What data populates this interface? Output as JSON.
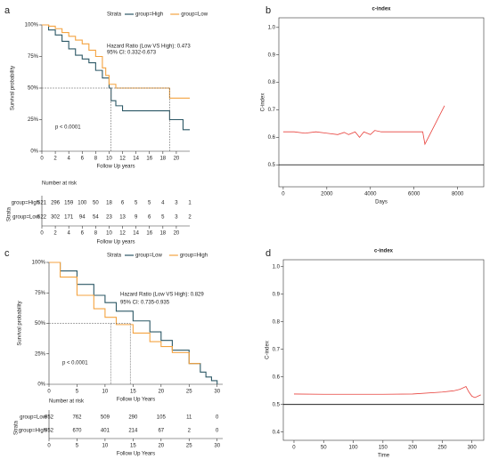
{
  "chart_data": [
    {
      "type": "km",
      "panel": "a",
      "ylabel": "Survival probability",
      "xlabel": "Follow Up years",
      "legend_title": "Strata",
      "xlim": [
        0,
        22
      ],
      "ylim": [
        0,
        100
      ],
      "xticks": [
        0,
        2,
        4,
        6,
        8,
        10,
        12,
        14,
        16,
        18,
        20
      ],
      "yticks": [
        {
          "value": 0,
          "label": "0%"
        },
        {
          "value": 25,
          "label": "25%"
        },
        {
          "value": 50,
          "label": "50%"
        },
        {
          "value": 75,
          "label": "75%"
        },
        {
          "value": 100,
          "label": "100%"
        }
      ],
      "series": [
        {
          "name": "group=High",
          "color": "#2c5866",
          "x": [
            0,
            1,
            2,
            3,
            4,
            5,
            6,
            7,
            8,
            9,
            10,
            10.3,
            11,
            12,
            15,
            19,
            21,
            22
          ],
          "values": [
            100,
            96,
            92,
            87,
            81,
            76,
            73,
            70,
            64,
            58,
            50,
            40,
            36,
            32,
            32,
            25,
            17,
            17
          ]
        },
        {
          "name": "group=Low",
          "color": "#f4a340",
          "x": [
            0,
            1,
            2,
            3,
            4,
            5,
            6,
            7,
            8,
            9,
            9.5,
            10,
            11,
            15,
            19,
            22
          ],
          "values": [
            100,
            99,
            97,
            94,
            91,
            88,
            85,
            80,
            75,
            66,
            60,
            53,
            50,
            50,
            42,
            42
          ]
        }
      ],
      "median_lines": {
        "y": 50,
        "x": [
          10.3,
          19
        ]
      },
      "annotations": [
        "Hazard Ratio (Low VS High): 0.473",
        "95% CI: 0.332-0.673",
        "p < 0.0001"
      ],
      "risk_table": {
        "title": "Number at risk",
        "ylabel": "Strata",
        "xlabel": "Follow Up years",
        "times": [
          0,
          2,
          4,
          6,
          8,
          10,
          12,
          14,
          16,
          18,
          20,
          22
        ],
        "rows": [
          {
            "name": "group=High",
            "color": "#2c5866",
            "values": [
              521,
              296,
              159,
              100,
              50,
              18,
              6,
              5,
              5,
              4,
              3,
              1
            ]
          },
          {
            "name": "group=Low",
            "color": "#f4a340",
            "values": [
              522,
              302,
              171,
              94,
              54,
              23,
              13,
              9,
              6,
              5,
              3,
              2
            ]
          }
        ]
      }
    },
    {
      "type": "line",
      "panel": "b",
      "title": "c-index",
      "ylabel": "C-index",
      "xlabel": "Days",
      "xlim": [
        -200,
        9200
      ],
      "ylim": [
        0.42,
        1.035
      ],
      "xticks": [
        0,
        2000,
        4000,
        6000,
        8000
      ],
      "yticks": [
        0.5,
        0.6,
        0.7,
        0.8,
        0.9,
        {
          "value": 1,
          "label": "1.0"
        }
      ],
      "hline": 0.5,
      "series": [
        {
          "color": "#e8413c",
          "x": [
            0,
            500,
            1000,
            1500,
            2000,
            2500,
            2800,
            3000,
            3300,
            3500,
            3700,
            4000,
            4200,
            4500,
            5000,
            5500,
            6000,
            6400,
            6500,
            7400
          ],
          "values": [
            0.62,
            0.62,
            0.615,
            0.62,
            0.615,
            0.61,
            0.618,
            0.61,
            0.62,
            0.6,
            0.62,
            0.61,
            0.625,
            0.62,
            0.62,
            0.62,
            0.62,
            0.62,
            0.575,
            0.715
          ]
        }
      ]
    },
    {
      "type": "km",
      "panel": "c",
      "ylabel": "Survival probability",
      "xlabel": "Follow Up Years",
      "legend_title": "Strata",
      "xlim": [
        0,
        31
      ],
      "ylim": [
        0,
        100
      ],
      "xticks": [
        0,
        5,
        10,
        15,
        20,
        25,
        30
      ],
      "yticks": [
        {
          "value": 0,
          "label": "0%"
        },
        {
          "value": 25,
          "label": "25%"
        },
        {
          "value": 50,
          "label": "50%"
        },
        {
          "value": 75,
          "label": "75%"
        },
        {
          "value": 100,
          "label": "100%"
        }
      ],
      "series": [
        {
          "name": "group=Low",
          "color": "#2c5866",
          "x": [
            0,
            2,
            5,
            8,
            10,
            12,
            15,
            18,
            20,
            22,
            25,
            27,
            28,
            29,
            30
          ],
          "values": [
            100,
            93,
            82,
            73,
            67,
            60,
            52,
            43,
            36,
            28,
            17,
            10,
            6,
            3,
            0
          ]
        },
        {
          "name": "group=High",
          "color": "#f4a340",
          "x": [
            0,
            2,
            5,
            8,
            10,
            12,
            15,
            18,
            20,
            22,
            25,
            27
          ],
          "values": [
            100,
            88,
            73,
            62,
            55,
            49,
            42,
            35,
            31,
            26,
            17,
            17
          ]
        }
      ],
      "median_lines": {
        "y": 50,
        "x": [
          11,
          14.5
        ]
      },
      "annotations": [
        "Hazard Ratio (Low VS High): 0.829",
        "95% CI: 0.735-0.935",
        "p < 0.0001"
      ],
      "risk_table": {
        "title": "Number at risk",
        "ylabel": "Strata",
        "xlabel": "Follow Up Years",
        "times": [
          0,
          5,
          10,
          15,
          20,
          25,
          30
        ],
        "rows": [
          {
            "name": "group=Low",
            "color": "#2c5866",
            "values": [
              952,
              762,
              509,
              290,
              105,
              11,
              0
            ]
          },
          {
            "name": "group=High",
            "color": "#f4a340",
            "values": [
              952,
              670,
              401,
              214,
              67,
              2,
              0
            ]
          }
        ]
      }
    },
    {
      "type": "line",
      "panel": "d",
      "title": "c-index",
      "ylabel": "C-index",
      "xlabel": "Time",
      "xlim": [
        -18,
        320
      ],
      "ylim": [
        0.37,
        1.025
      ],
      "xticks": [
        0,
        50,
        100,
        150,
        200,
        250,
        300
      ],
      "yticks": [
        0.4,
        0.5,
        0.6,
        0.7,
        0.8,
        0.9,
        {
          "value": 1,
          "label": "1.0"
        }
      ],
      "hline": 0.5,
      "series": [
        {
          "color": "#e8413c",
          "x": [
            0,
            50,
            100,
            150,
            200,
            250,
            270,
            280,
            290,
            295,
            300,
            305,
            315
          ],
          "values": [
            0.538,
            0.537,
            0.537,
            0.537,
            0.538,
            0.545,
            0.55,
            0.555,
            0.565,
            0.545,
            0.53,
            0.525,
            0.535
          ]
        }
      ]
    }
  ]
}
